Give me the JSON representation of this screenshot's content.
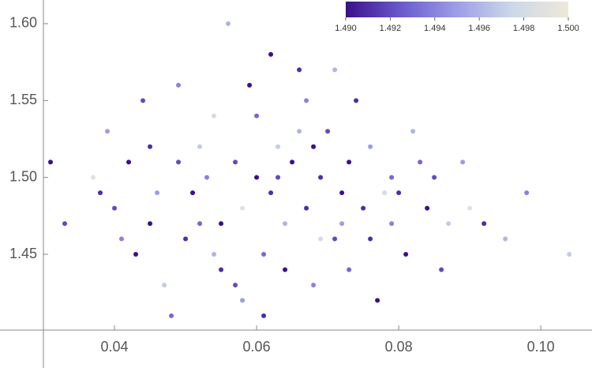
{
  "chart_data": {
    "type": "scatter",
    "x": [
      0.045,
      0.052,
      0.06,
      0.066,
      0.071,
      0.078,
      0.055,
      0.049,
      0.062,
      0.058,
      0.083,
      0.087,
      0.04,
      0.037,
      0.043,
      0.068,
      0.074,
      0.064,
      0.057,
      0.051,
      0.047,
      0.069,
      0.076,
      0.081,
      0.054,
      0.061,
      0.066,
      0.072,
      0.079,
      0.085,
      0.09,
      0.095,
      0.098,
      0.104,
      0.033,
      0.031,
      0.039,
      0.044,
      0.048,
      0.056,
      0.059,
      0.063,
      0.067,
      0.073,
      0.077,
      0.082,
      0.086,
      0.05,
      0.053,
      0.058,
      0.062,
      0.065,
      0.07,
      0.075,
      0.046,
      0.042,
      0.052,
      0.06,
      0.064,
      0.069,
      0.073,
      0.079,
      0.055,
      0.057,
      0.061,
      0.067,
      0.071,
      0.076,
      0.084,
      0.089,
      0.092,
      0.041,
      0.038,
      0.045,
      0.049,
      0.054,
      0.063,
      0.068,
      0.072,
      0.08
    ],
    "values": [
      1.52,
      1.47,
      1.5,
      1.53,
      1.46,
      1.49,
      1.44,
      1.56,
      1.58,
      1.42,
      1.51,
      1.47,
      1.48,
      1.5,
      1.45,
      1.43,
      1.55,
      1.47,
      1.51,
      1.49,
      1.43,
      1.5,
      1.52,
      1.45,
      1.54,
      1.45,
      1.57,
      1.49,
      1.47,
      1.5,
      1.48,
      1.46,
      1.49,
      1.45,
      1.47,
      1.51,
      1.53,
      1.55,
      1.41,
      1.6,
      1.56,
      1.52,
      1.48,
      1.44,
      1.42,
      1.53,
      1.44,
      1.46,
      1.5,
      1.48,
      1.49,
      1.51,
      1.53,
      1.48,
      1.49,
      1.51,
      1.52,
      1.54,
      1.44,
      1.46,
      1.51,
      1.5,
      1.47,
      1.43,
      1.41,
      1.55,
      1.57,
      1.46,
      1.48,
      1.51,
      1.47,
      1.46,
      1.49,
      1.47,
      1.51,
      1.45,
      1.5,
      1.52,
      1.47,
      1.49
    ],
    "color_values": [
      1.491,
      1.493,
      1.49,
      1.496,
      1.492,
      1.498,
      1.491,
      1.494,
      1.49,
      1.495,
      1.493,
      1.497,
      1.492,
      1.499,
      1.49,
      1.494,
      1.491,
      1.496,
      1.492,
      1.49,
      1.497,
      1.491,
      1.495,
      1.49,
      1.498,
      1.493,
      1.491,
      1.49,
      1.494,
      1.492,
      1.499,
      1.496,
      1.494,
      1.497,
      1.492,
      1.49,
      1.495,
      1.492,
      1.493,
      1.496,
      1.49,
      1.497,
      1.491,
      1.493,
      1.49,
      1.496,
      1.492,
      1.491,
      1.494,
      1.499,
      1.491,
      1.49,
      1.492,
      1.491,
      1.495,
      1.49,
      1.497,
      1.493,
      1.49,
      1.498,
      1.49,
      1.493,
      1.49,
      1.492,
      1.491,
      1.494,
      1.496,
      1.491,
      1.49,
      1.495,
      1.491,
      1.494,
      1.491,
      1.49,
      1.492,
      1.496,
      1.492,
      1.49,
      1.495,
      1.491
    ],
    "xlim": [
      0.03,
      0.1072
    ],
    "ylim": [
      1.4007,
      1.6154
    ],
    "xticks": [
      0.04,
      0.06,
      0.08,
      {
        "value": 0.1,
        "label": "0.10"
      }
    ],
    "yticks": [
      1.45,
      {
        "value": 1.5,
        "label": "1.50"
      },
      1.55,
      {
        "value": 1.6,
        "label": "1.60"
      }
    ],
    "colormap": [
      "#3b0f8c",
      "#6a5acd",
      "#9d9ee6",
      "#cdd8e8",
      "#eee8d8"
    ],
    "clim": [
      1.49,
      1.5
    ],
    "colorbar_ticks": [
      {
        "value": 1.49,
        "label": "1.490"
      },
      {
        "value": 1.492,
        "label": "1.492"
      },
      {
        "value": 1.494,
        "label": "1.494"
      },
      {
        "value": 1.496,
        "label": "1.496"
      },
      {
        "value": 1.498,
        "label": "1.498"
      },
      {
        "value": 1.5,
        "label": "1.500"
      }
    ],
    "grid": false
  }
}
